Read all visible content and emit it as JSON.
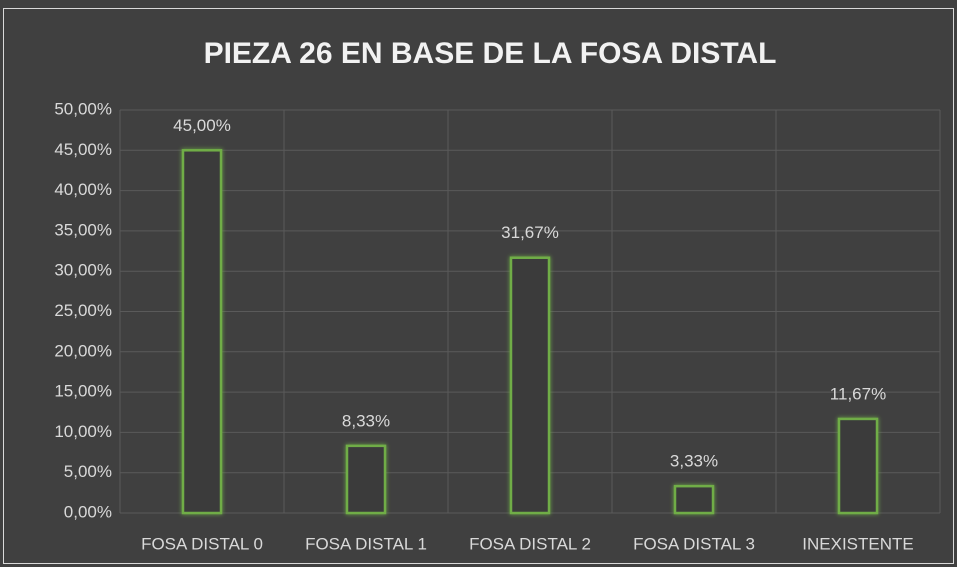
{
  "chart_data": {
    "type": "bar",
    "title": "PIEZA 26 EN BASE DE LA FOSA DISTAL",
    "categories": [
      "FOSA DISTAL 0",
      "FOSA DISTAL 1",
      "FOSA DISTAL 2",
      "FOSA DISTAL 3",
      "INEXISTENTE"
    ],
    "values": [
      45,
      8.33,
      31.67,
      3.33,
      11.67
    ],
    "value_labels": [
      "45,00%",
      "8,33%",
      "31,67%",
      "3,33%",
      "11,67%"
    ],
    "color": "#70ad47",
    "ylim": [
      0,
      50
    ],
    "yticks": [
      {
        "value": 0,
        "label": "0,00%"
      },
      {
        "value": 5,
        "label": "5,00%"
      },
      {
        "value": 10,
        "label": "10,00%"
      },
      {
        "value": 15,
        "label": "15,00%"
      },
      {
        "value": 20,
        "label": "20,00%"
      },
      {
        "value": 25,
        "label": "25,00%"
      },
      {
        "value": 30,
        "label": "30,00%"
      },
      {
        "value": 35,
        "label": "35,00%"
      },
      {
        "value": 40,
        "label": "40,00%"
      },
      {
        "value": 45,
        "label": "45,00%"
      },
      {
        "value": 50,
        "label": "50,00%"
      }
    ],
    "grid": true
  }
}
